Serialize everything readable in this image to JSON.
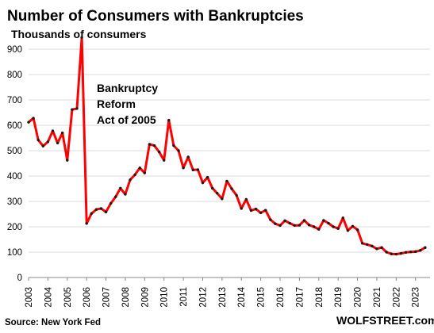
{
  "chart_data": {
    "type": "line",
    "title": "Number of Consumers with Bankruptcies",
    "unit_label": "Thousands of consumers",
    "annotation": [
      "Bankruptcy",
      "Reform",
      "Act of 2005"
    ],
    "source": "Source: New York Fed",
    "brand": "WOLFSTREET.com",
    "ylim": [
      0,
      950
    ],
    "yticks": [
      0,
      100,
      200,
      300,
      400,
      500,
      600,
      700,
      800,
      900
    ],
    "xlim": [
      2003,
      2023.75
    ],
    "xticks": [
      "2003",
      "2004",
      "2005",
      "2006",
      "2007",
      "2008",
      "2009",
      "2010",
      "2011",
      "2012",
      "2013",
      "2014",
      "2015",
      "2016",
      "2017",
      "2018",
      "2019",
      "2020",
      "2021",
      "2022",
      "2023"
    ],
    "grid": true,
    "legend": "none",
    "series": [
      {
        "color": "#ff0000",
        "x": [
          2003.0,
          2003.25,
          2003.5,
          2003.75,
          2004.0,
          2004.25,
          2004.5,
          2004.75,
          2005.0,
          2005.25,
          2005.5,
          2005.75,
          2006.0,
          2006.25,
          2006.5,
          2006.75,
          2007.0,
          2007.25,
          2007.5,
          2007.75,
          2008.0,
          2008.25,
          2008.5,
          2008.75,
          2009.0,
          2009.25,
          2009.5,
          2009.75,
          2010.0,
          2010.25,
          2010.5,
          2010.75,
          2011.0,
          2011.25,
          2011.5,
          2011.75,
          2012.0,
          2012.25,
          2012.5,
          2012.75,
          2013.0,
          2013.25,
          2013.5,
          2013.75,
          2014.0,
          2014.25,
          2014.5,
          2014.75,
          2015.0,
          2015.25,
          2015.5,
          2015.75,
          2016.0,
          2016.25,
          2016.5,
          2016.75,
          2017.0,
          2017.25,
          2017.5,
          2017.75,
          2018.0,
          2018.25,
          2018.5,
          2018.75,
          2019.0,
          2019.25,
          2019.5,
          2019.75,
          2020.0,
          2020.25,
          2020.5,
          2020.75,
          2021.0,
          2021.25,
          2021.5,
          2021.75,
          2022.0,
          2022.25,
          2022.5,
          2022.75,
          2023.0,
          2023.25,
          2023.5
        ],
        "y": [
          612,
          628,
          542,
          518,
          535,
          578,
          530,
          570,
          462,
          662,
          666,
          946,
          213,
          252,
          268,
          272,
          258,
          292,
          318,
          352,
          328,
          385,
          405,
          432,
          412,
          525,
          520,
          495,
          462,
          620,
          520,
          500,
          432,
          475,
          424,
          425,
          373,
          395,
          352,
          332,
          310,
          380,
          350,
          324,
          272,
          308,
          264,
          270,
          255,
          265,
          228,
          212,
          205,
          224,
          214,
          205,
          206,
          225,
          207,
          200,
          190,
          225,
          214,
          200,
          193,
          235,
          185,
          202,
          188,
          135,
          130,
          124,
          113,
          118,
          100,
          93,
          92,
          95,
          99,
          101,
          102,
          107,
          118
        ]
      }
    ]
  }
}
